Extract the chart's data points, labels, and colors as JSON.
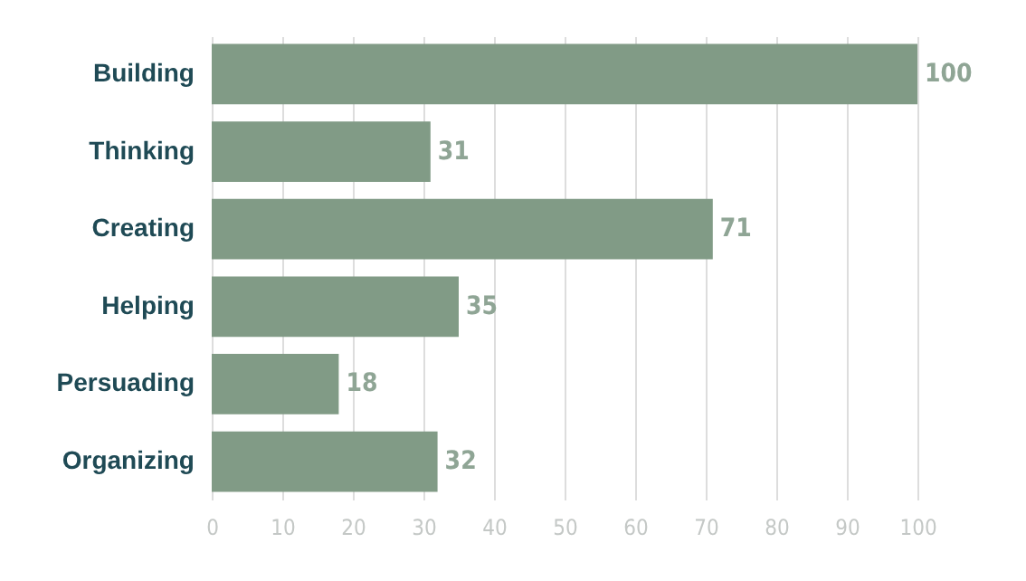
{
  "chart_data": {
    "type": "bar",
    "orientation": "horizontal",
    "categories": [
      "Building",
      "Thinking",
      "Creating",
      "Helping",
      "Persuading",
      "Organizing"
    ],
    "values": [
      100,
      31,
      71,
      35,
      18,
      32
    ],
    "color": "#819b86",
    "xlim": [
      0,
      100
    ],
    "xticks": [
      0,
      10,
      20,
      30,
      40,
      50,
      60,
      70,
      80,
      90,
      100
    ],
    "grid": "x",
    "data_labels": true
  }
}
